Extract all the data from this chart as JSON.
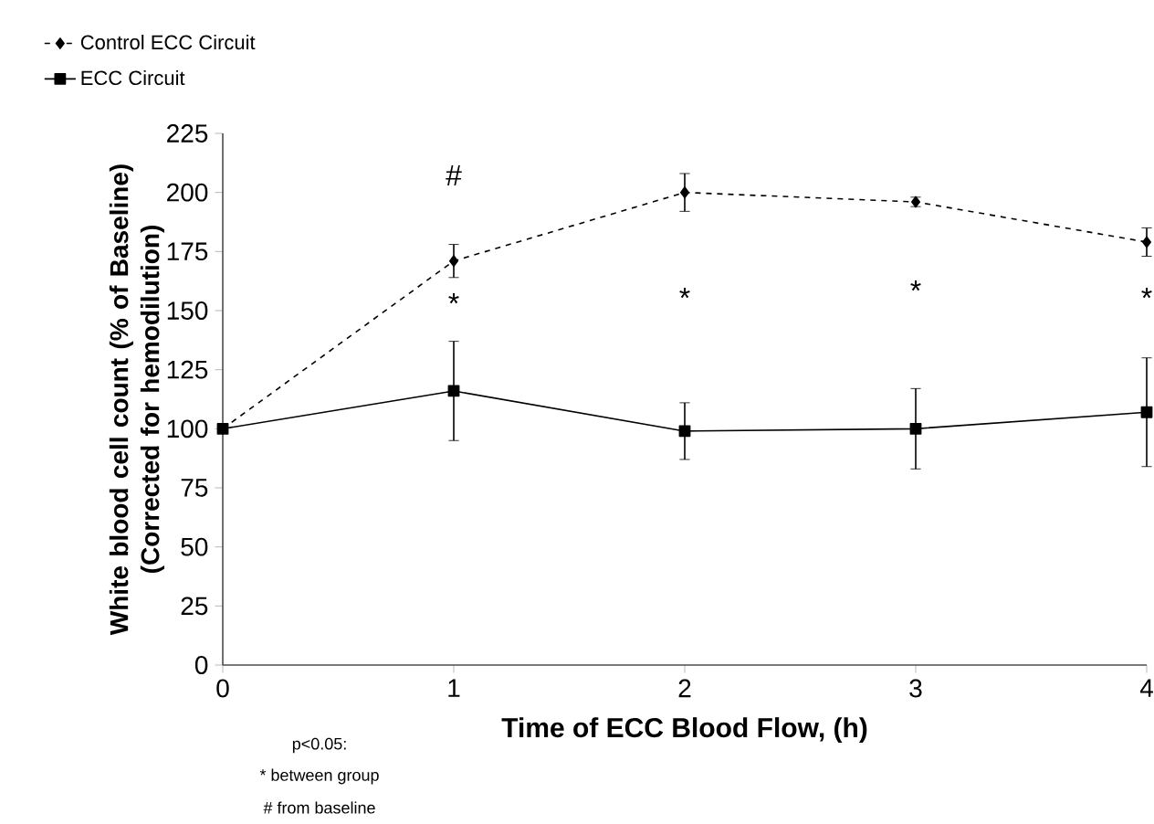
{
  "chart_data": {
    "type": "line",
    "xlabel": "Time of ECC Blood Flow, (h)",
    "ylabel": "White blood cell count (% of Baseline) (Corrected for hemodilution)",
    "x": [
      0,
      1,
      2,
      3,
      4
    ],
    "series": [
      {
        "name": "Control ECC Circuit",
        "color": "#000000",
        "marker": "diamond",
        "line_style": "dashed",
        "values": [
          100,
          171,
          200,
          196,
          179
        ],
        "errors": [
          null,
          7,
          8,
          2,
          6
        ]
      },
      {
        "name": "ECC Circuit",
        "color": "#000000",
        "marker": "square",
        "line_style": "solid",
        "values": [
          100,
          116,
          99,
          100,
          107
        ],
        "errors": [
          null,
          21,
          12,
          17,
          23
        ]
      }
    ],
    "xlim": [
      0,
      4
    ],
    "xticks": [
      0,
      1,
      2,
      3,
      4
    ],
    "ylim": [
      0,
      225
    ],
    "yticks": [
      0,
      25,
      50,
      75,
      100,
      125,
      150,
      175,
      200,
      225
    ],
    "grid": false,
    "legend": "top left",
    "annotations": [
      "#",
      "*",
      "*",
      "*",
      "*",
      "p<0.05:",
      "* between group",
      "# from baseline"
    ]
  }
}
